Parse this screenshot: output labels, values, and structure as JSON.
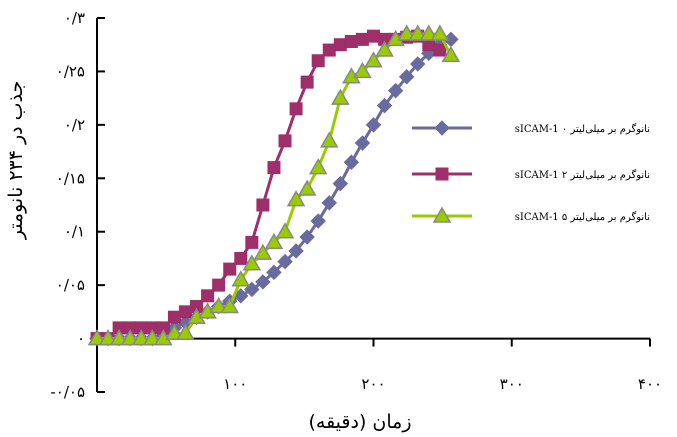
{
  "chart_data": {
    "type": "line",
    "title": "",
    "xlabel": "زمان (دقیقه)",
    "ylabel": "جذب در ۲۳۴ نانومتر",
    "xlim": [
      0,
      400
    ],
    "ylim": [
      -0.05,
      0.3
    ],
    "x_ticks": [
      {
        "value": 100,
        "label": "۱۰۰"
      },
      {
        "value": 200,
        "label": "۲۰۰"
      },
      {
        "value": 300,
        "label": "۳۰۰"
      },
      {
        "value": 400,
        "label": "۴۰۰"
      }
    ],
    "y_ticks": [
      {
        "value": -0.05,
        "label": "-۰/۰۵"
      },
      {
        "value": 0,
        "label": "۰"
      },
      {
        "value": 0.05,
        "label": "۰/۰۵"
      },
      {
        "value": 0.1,
        "label": "۰/۱"
      },
      {
        "value": 0.15,
        "label": "۰/۱۵"
      },
      {
        "value": 0.2,
        "label": "۰/۲"
      },
      {
        "value": 0.25,
        "label": "۰/۲۵"
      },
      {
        "value": 0.3,
        "label": "۰/۳"
      }
    ],
    "grid": false,
    "legend_position": "right",
    "series": [
      {
        "name": "sICAM-1 ۰ نانوگرم بر میلی‌لیتر",
        "color": "#6a6a9e",
        "marker": "diamond",
        "x": [
          0,
          8,
          16,
          24,
          32,
          40,
          48,
          56,
          64,
          72,
          80,
          88,
          96,
          104,
          112,
          120,
          128,
          136,
          144,
          152,
          160,
          168,
          176,
          184,
          192,
          200,
          208,
          216,
          224,
          232,
          240,
          248,
          256
        ],
        "y": [
          0,
          0,
          0,
          0,
          0,
          0,
          0.005,
          0.01,
          0.015,
          0.02,
          0.025,
          0.03,
          0.035,
          0.04,
          0.046,
          0.053,
          0.062,
          0.072,
          0.082,
          0.095,
          0.11,
          0.127,
          0.145,
          0.165,
          0.183,
          0.2,
          0.218,
          0.232,
          0.245,
          0.257,
          0.267,
          0.275,
          0.28
        ]
      },
      {
        "name": "sICAM-1 ۲ نانوگرم بر میلی‌لیتر",
        "color": "#9e2f6a",
        "marker": "square",
        "x": [
          0,
          8,
          16,
          24,
          32,
          40,
          48,
          56,
          64,
          72,
          80,
          88,
          96,
          104,
          112,
          120,
          128,
          136,
          144,
          152,
          160,
          168,
          176,
          184,
          192,
          200,
          208,
          216,
          224,
          232,
          240,
          248
        ],
        "y": [
          0,
          0,
          0.01,
          0.01,
          0.01,
          0.01,
          0.01,
          0.02,
          0.025,
          0.03,
          0.04,
          0.05,
          0.065,
          0.075,
          0.09,
          0.125,
          0.16,
          0.185,
          0.215,
          0.24,
          0.26,
          0.27,
          0.275,
          0.278,
          0.28,
          0.283,
          0.28,
          0.28,
          0.282,
          0.283,
          0.275,
          0.27
        ]
      },
      {
        "name": "sICAM-1 ۵ نانوگرم بر میلی‌لیتر",
        "color": "#99cc00",
        "marker": "triangle",
        "x": [
          0,
          8,
          16,
          24,
          32,
          40,
          48,
          56,
          64,
          72,
          80,
          88,
          96,
          104,
          112,
          120,
          128,
          136,
          144,
          152,
          160,
          168,
          176,
          184,
          192,
          200,
          208,
          216,
          224,
          232,
          240,
          248,
          256
        ],
        "y": [
          0,
          0,
          0,
          0,
          0,
          0,
          0,
          0.005,
          0.005,
          0.02,
          0.025,
          0.03,
          0.03,
          0.055,
          0.07,
          0.08,
          0.09,
          0.1,
          0.13,
          0.14,
          0.16,
          0.185,
          0.225,
          0.245,
          0.25,
          0.26,
          0.27,
          0.28,
          0.285,
          0.285,
          0.285,
          0.285,
          0.265
        ]
      }
    ]
  }
}
